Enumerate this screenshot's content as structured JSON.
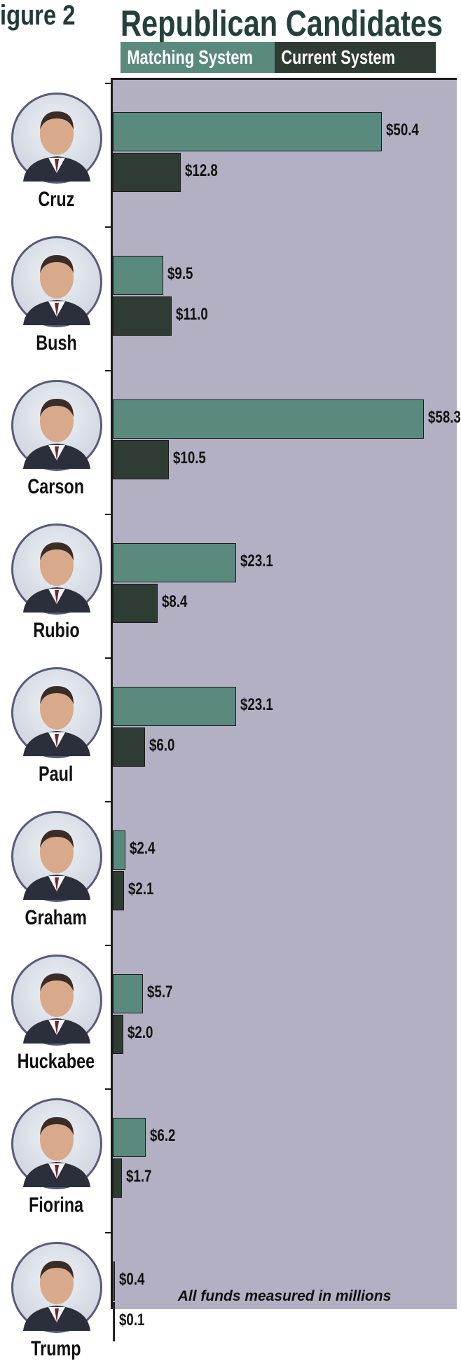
{
  "figure_label": "igure 2",
  "footnote": "All funds measured in millions",
  "colors": {
    "matching": "#5a8a7d",
    "current": "#2e3c34",
    "plot_background": "#b2b0c2"
  },
  "chart_data": {
    "type": "bar",
    "orientation": "horizontal",
    "title": "Republican Candidates",
    "legend": {
      "placement": "top"
    },
    "categories": [
      "Cruz",
      "Bush",
      "Carson",
      "Rubio",
      "Paul",
      "Graham",
      "Huckabee",
      "Fiorina",
      "Trump"
    ],
    "series": [
      {
        "name": "Matching System",
        "values": [
          50.4,
          9.5,
          58.3,
          23.1,
          23.1,
          2.4,
          5.7,
          6.2,
          0.4
        ],
        "labels": [
          "$50.4",
          "$9.5",
          "$58.3",
          "$23.1",
          "$23.1",
          "$2.4",
          "$5.7",
          "$6.2",
          "$0.4"
        ]
      },
      {
        "name": "Current System",
        "values": [
          12.8,
          11.0,
          10.5,
          8.4,
          6.0,
          2.1,
          2.0,
          1.7,
          0.1
        ],
        "labels": [
          "$12.8",
          "$11.0",
          "$10.5",
          "$8.4",
          "$6.0",
          "$2.1",
          "$2.0",
          "$1.7",
          "$0.1"
        ]
      }
    ],
    "xlim": [
      0,
      60
    ],
    "grid": false
  }
}
